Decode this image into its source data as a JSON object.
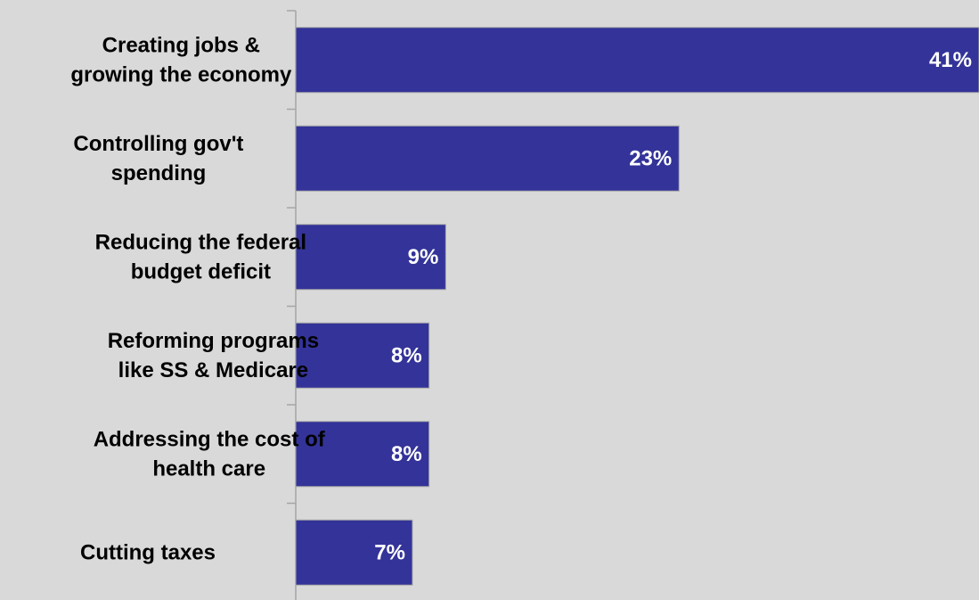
{
  "chart_data": {
    "type": "bar",
    "orientation": "horizontal",
    "categories": [
      [
        "Creating jobs &",
        "growing the economy"
      ],
      [
        "Controlling gov't",
        "spending"
      ],
      [
        "Reducing the federal",
        "budget deficit"
      ],
      [
        "Reforming programs",
        "like SS & Medicare"
      ],
      [
        "Addressing the cost of",
        "health care"
      ],
      [
        "Cutting taxes"
      ]
    ],
    "values": [
      41,
      23,
      9,
      8,
      8,
      7
    ],
    "data_labels": [
      "41%",
      "23%",
      "9%",
      "8%",
      "8%",
      "7%"
    ],
    "xlim": [
      0,
      41
    ],
    "grid": false,
    "legend": "none",
    "bar_color": "#333399",
    "bar_edge_color": "#a6a6a6",
    "background_color": "#d9d9d9",
    "axis_color": "#a6a6a6"
  }
}
